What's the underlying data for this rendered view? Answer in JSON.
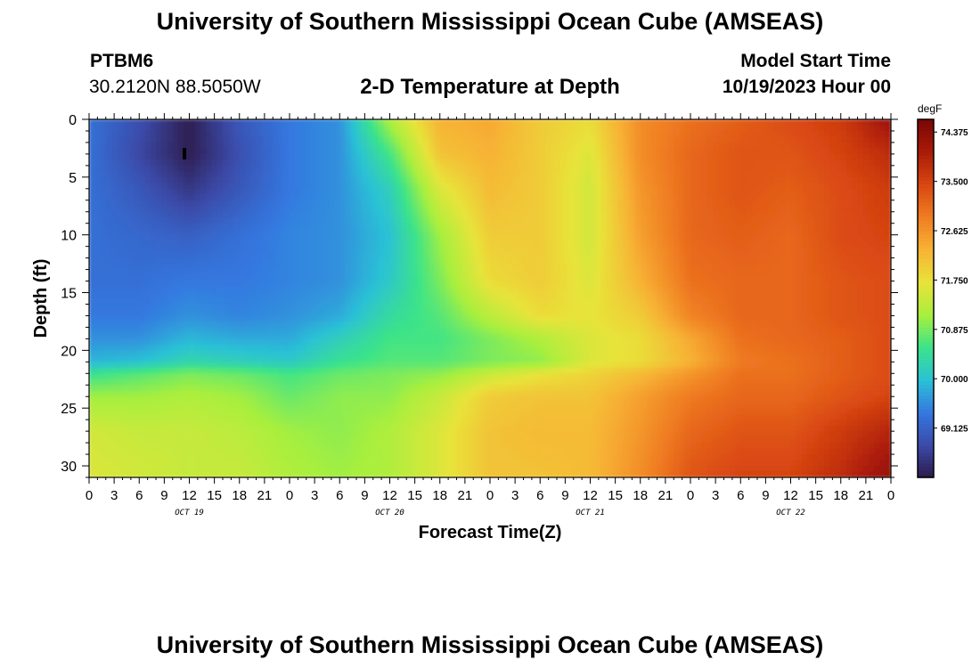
{
  "page": {
    "title": "University of Southern Mississippi Ocean Cube (AMSEAS)",
    "station_id": "PTBM6",
    "station_coords": "30.2120N  88.5050W",
    "model_start_label": "Model Start Time",
    "model_start_value": "10/19/2023 Hour 00",
    "repeat_title": "University of Southern Mississippi Ocean Cube (AMSEAS)"
  },
  "chart_data": {
    "type": "heatmap",
    "title": "2-D Temperature at Depth",
    "xlabel": "Forecast Time(Z)",
    "ylabel": "Depth (ft)",
    "x_tick_labels": [
      "0",
      "3",
      "6",
      "9",
      "12",
      "15",
      "18",
      "21",
      "0",
      "3",
      "6",
      "9",
      "12",
      "15",
      "18",
      "21",
      "0",
      "3",
      "6",
      "9",
      "12",
      "15",
      "18",
      "21",
      "0",
      "3",
      "6",
      "9",
      "12",
      "15",
      "18",
      "21",
      "0"
    ],
    "day_labels": [
      {
        "label": "OCT 19",
        "hour": 12
      },
      {
        "label": "OCT 20",
        "hour": 36
      },
      {
        "label": "OCT 21",
        "hour": 60
      },
      {
        "label": "OCT 22",
        "hour": 84
      }
    ],
    "xlim_hours": [
      0,
      96
    ],
    "y_ticks": [
      0,
      5,
      10,
      15,
      20,
      25,
      30
    ],
    "ylim": [
      0,
      31
    ],
    "y_inverted": true,
    "colorbar": {
      "unit": "degF",
      "tick_labels": [
        "74.375",
        "73.500",
        "72.625",
        "71.750",
        "70.875",
        "70.000",
        "69.125"
      ],
      "ticks": [
        74.375,
        73.5,
        72.625,
        71.75,
        70.875,
        70.0,
        69.125
      ],
      "range": [
        68.25,
        74.6
      ],
      "colors": [
        "#2d1a4a",
        "#3b4aa8",
        "#3478e0",
        "#2bc1d6",
        "#3be38a",
        "#a9ef3d",
        "#e8e33a",
        "#f7b335",
        "#f07d22",
        "#d94712",
        "#aa1b08",
        "#7a0704"
      ]
    },
    "time_hours": [
      0,
      6,
      12,
      18,
      24,
      30,
      36,
      42,
      48,
      54,
      60,
      66,
      72,
      78,
      84,
      90,
      96
    ],
    "depths_ft": [
      0,
      3,
      6,
      10,
      14,
      17,
      19,
      21,
      22,
      24,
      27,
      31
    ],
    "values_degF": [
      [
        69.3,
        68.9,
        68.3,
        69.0,
        69.4,
        69.6,
        71.2,
        72.3,
        72.4,
        72.0,
        71.8,
        72.7,
        73.0,
        73.2,
        73.4,
        73.6,
        74.2
      ],
      [
        69.3,
        68.8,
        68.3,
        68.9,
        69.4,
        69.6,
        70.6,
        72.1,
        72.3,
        72.0,
        71.6,
        72.7,
        73.1,
        73.3,
        73.3,
        73.5,
        73.8
      ],
      [
        69.3,
        69.0,
        68.6,
        69.0,
        69.4,
        69.6,
        70.2,
        71.6,
        72.2,
        72.0,
        71.5,
        72.6,
        73.1,
        73.3,
        73.2,
        73.4,
        73.6
      ],
      [
        69.3,
        69.2,
        69.1,
        69.3,
        69.5,
        69.6,
        70.0,
        71.1,
        72.0,
        72.0,
        71.5,
        72.5,
        73.1,
        73.2,
        73.1,
        73.4,
        73.5
      ],
      [
        69.3,
        69.3,
        69.4,
        69.4,
        69.5,
        69.6,
        70.1,
        70.9,
        71.8,
        72.0,
        71.6,
        72.3,
        73.0,
        73.1,
        73.1,
        73.3,
        73.4
      ],
      [
        69.4,
        69.4,
        69.6,
        69.5,
        69.6,
        69.8,
        70.4,
        70.7,
        71.3,
        71.8,
        71.7,
        72.0,
        72.8,
        73.1,
        73.1,
        73.3,
        73.4
      ],
      [
        69.6,
        69.6,
        69.9,
        69.8,
        69.8,
        70.2,
        70.6,
        70.6,
        70.9,
        71.2,
        71.6,
        71.8,
        72.4,
        73.0,
        73.1,
        73.2,
        73.4
      ],
      [
        69.9,
        70.0,
        70.3,
        70.2,
        70.1,
        70.5,
        70.7,
        70.7,
        70.9,
        71.0,
        71.6,
        71.8,
        72.3,
        72.9,
        73.0,
        73.2,
        73.4
      ],
      [
        70.5,
        70.7,
        70.9,
        70.8,
        70.6,
        70.8,
        70.9,
        71.0,
        71.4,
        71.7,
        71.9,
        72.2,
        72.6,
        73.0,
        73.0,
        73.2,
        73.4
      ],
      [
        71.1,
        71.1,
        71.2,
        71.1,
        70.8,
        71.0,
        71.0,
        71.4,
        72.0,
        72.1,
        72.1,
        72.5,
        72.9,
        73.1,
        73.1,
        73.3,
        73.5
      ],
      [
        71.5,
        71.4,
        71.4,
        71.3,
        71.1,
        71.0,
        71.2,
        71.6,
        72.1,
        72.2,
        72.2,
        72.6,
        73.1,
        73.3,
        73.3,
        73.6,
        73.9
      ],
      [
        71.6,
        71.5,
        71.4,
        71.4,
        71.2,
        71.1,
        71.2,
        71.6,
        72.1,
        72.1,
        72.2,
        72.7,
        73.3,
        73.5,
        73.5,
        73.8,
        74.3
      ]
    ]
  }
}
